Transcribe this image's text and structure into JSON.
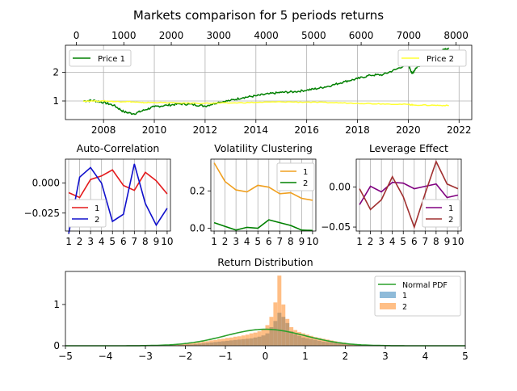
{
  "figure": {
    "title": "Markets comparison for 5 periods returns"
  },
  "chart_data": [
    {
      "id": "prices",
      "type": "line",
      "title": "",
      "x_bottom": {
        "ticks": [
          "2008",
          "2010",
          "2012",
          "2014",
          "2016",
          "2018",
          "2020",
          "2022"
        ],
        "range": [
          2006.5,
          2022.5
        ]
      },
      "x_top": {
        "ticks": [
          "0",
          "1000",
          "2000",
          "3000",
          "4000",
          "5000",
          "6000",
          "7000",
          "8000"
        ],
        "range": [
          -230,
          8330
        ]
      },
      "ylim": [
        0.35,
        2.95
      ],
      "yticks": [
        "1",
        "2"
      ],
      "grid": true,
      "legend": [
        {
          "label": "Price 1",
          "color": "#008000",
          "placement": "upper-left"
        },
        {
          "label": "Price 2",
          "color": "#ffff33",
          "placement": "upper-right"
        }
      ],
      "series": [
        {
          "name": "Price 1",
          "color": "#008000",
          "x": [
            2007.2,
            2007.6,
            2008.0,
            2008.4,
            2008.8,
            2009.2,
            2009.6,
            2010.0,
            2010.5,
            2011.0,
            2011.5,
            2012.0,
            2012.5,
            2013.0,
            2013.5,
            2014.0,
            2014.5,
            2015.0,
            2015.5,
            2016.0,
            2016.5,
            2017.0,
            2017.5,
            2018.0,
            2018.5,
            2019.0,
            2019.5,
            2020.0,
            2020.15,
            2020.3,
            2020.6,
            2021.0,
            2021.4,
            2021.6
          ],
          "values": [
            1.0,
            1.02,
            0.95,
            0.85,
            0.62,
            0.55,
            0.68,
            0.8,
            0.85,
            0.9,
            0.88,
            0.82,
            0.95,
            1.02,
            1.12,
            1.18,
            1.25,
            1.3,
            1.32,
            1.38,
            1.45,
            1.55,
            1.68,
            1.78,
            1.9,
            1.92,
            2.1,
            2.3,
            1.95,
            2.15,
            2.35,
            2.55,
            2.8,
            2.85
          ]
        },
        {
          "name": "Price 2",
          "color": "#ffff33",
          "x": [
            2007.2,
            2008.0,
            2008.5,
            2009.0,
            2009.5,
            2010.0,
            2011.0,
            2012.0,
            2013.0,
            2014.0,
            2015.0,
            2016.0,
            2017.0,
            2018.0,
            2019.0,
            2020.0,
            2020.2,
            2021.0,
            2021.6
          ],
          "values": [
            1.0,
            1.0,
            0.98,
            0.98,
            0.94,
            0.95,
            0.93,
            0.92,
            0.93,
            0.95,
            0.97,
            0.96,
            0.94,
            0.92,
            0.9,
            0.88,
            0.86,
            0.85,
            0.84
          ]
        }
      ]
    },
    {
      "id": "autocorr",
      "type": "line",
      "title": "Auto-Correlation",
      "categories": [
        "1",
        "2",
        "3",
        "4",
        "5",
        "6",
        "7",
        "8",
        "9",
        "10"
      ],
      "xlim": [
        0.7,
        10.3
      ],
      "ylim": [
        -0.04,
        0.02
      ],
      "yticks": [
        0.0,
        -0.025
      ],
      "ytick_labels": [
        "0.000",
        "−0.025"
      ],
      "grid": true,
      "legend_placement": "lower-left",
      "series": [
        {
          "name": "1",
          "color": "#e41a1c",
          "values": [
            -0.008,
            -0.012,
            0.003,
            0.006,
            0.011,
            -0.002,
            -0.006,
            0.009,
            0.002,
            -0.009
          ]
        },
        {
          "name": "2",
          "color": "#1010cc",
          "values": [
            -0.042,
            0.005,
            0.013,
            0.0,
            -0.032,
            -0.026,
            0.016,
            -0.017,
            -0.035,
            -0.021
          ]
        }
      ]
    },
    {
      "id": "volclust",
      "type": "line",
      "title": "Volatility Clustering",
      "categories": [
        "1",
        "2",
        "3",
        "4",
        "5",
        "6",
        "7",
        "8",
        "9",
        "10"
      ],
      "xlim": [
        0.7,
        10.3
      ],
      "ylim": [
        -0.015,
        0.37
      ],
      "yticks": [
        0.0,
        0.2
      ],
      "ytick_labels": [
        "0.0",
        "0.2"
      ],
      "grid": true,
      "legend_placement": "upper-right",
      "series": [
        {
          "name": "1",
          "color": "#f0a020",
          "values": [
            0.35,
            0.25,
            0.205,
            0.195,
            0.23,
            0.22,
            0.185,
            0.19,
            0.16,
            0.15
          ]
        },
        {
          "name": "2",
          "color": "#008000",
          "values": [
            0.03,
            0.01,
            -0.01,
            0.005,
            0.0,
            0.045,
            0.03,
            0.015,
            -0.01,
            -0.012
          ]
        }
      ]
    },
    {
      "id": "leverage",
      "type": "line",
      "title": "Leverage Effect",
      "categories": [
        "1",
        "2",
        "3",
        "4",
        "5",
        "6",
        "7",
        "8",
        "9",
        "10"
      ],
      "xlim": [
        0.7,
        10.3
      ],
      "ylim": [
        -0.055,
        0.035
      ],
      "yticks": [
        0.0,
        -0.05
      ],
      "ytick_labels": [
        "0.00",
        "−0.05"
      ],
      "grid": true,
      "legend_placement": "lower-right",
      "series": [
        {
          "name": "1",
          "color": "#800080",
          "values": [
            -0.022,
            0.001,
            -0.006,
            0.006,
            0.005,
            -0.002,
            0.001,
            0.004,
            -0.013,
            -0.01
          ]
        },
        {
          "name": "2",
          "color": "#a03030",
          "values": [
            -0.002,
            -0.028,
            -0.016,
            0.013,
            -0.012,
            -0.05,
            -0.008,
            0.032,
            0.004,
            -0.002
          ]
        }
      ]
    },
    {
      "id": "returns",
      "type": "bar",
      "title": "Return Distribution",
      "xlim": [
        -5,
        5
      ],
      "ylim": [
        0,
        1.8
      ],
      "xticks": [
        "−5",
        "−4",
        "−3",
        "−2",
        "−1",
        "0",
        "1",
        "2",
        "3",
        "4",
        "5"
      ],
      "yticks": [
        "0",
        "1"
      ],
      "legend_placement": "upper-right",
      "series": [
        {
          "name": "Normal PDF",
          "color": "#2ca02c",
          "kind": "pdf",
          "mu": 0,
          "sigma": 1
        },
        {
          "name": "1",
          "color": "#1f77b4",
          "kind": "histogram",
          "bin_width": 0.1,
          "bin_start": -2.4,
          "values": [
            0.01,
            0.01,
            0.02,
            0.02,
            0.03,
            0.03,
            0.04,
            0.05,
            0.06,
            0.07,
            0.08,
            0.09,
            0.1,
            0.11,
            0.12,
            0.13,
            0.14,
            0.15,
            0.16,
            0.17,
            0.18,
            0.2,
            0.22,
            0.25,
            0.3,
            0.45,
            0.6,
            0.8,
            0.7,
            0.55,
            0.35,
            0.28,
            0.24,
            0.2,
            0.18,
            0.16,
            0.14,
            0.12,
            0.1,
            0.09,
            0.08,
            0.07,
            0.06,
            0.05,
            0.04,
            0.03,
            0.02,
            0.02,
            0.01
          ]
        },
        {
          "name": "2",
          "color": "#ff7f0e",
          "kind": "histogram",
          "bin_width": 0.1,
          "bin_start": -2.4,
          "values": [
            0.02,
            0.02,
            0.03,
            0.04,
            0.05,
            0.06,
            0.07,
            0.08,
            0.1,
            0.11,
            0.13,
            0.14,
            0.16,
            0.17,
            0.19,
            0.2,
            0.22,
            0.23,
            0.25,
            0.27,
            0.3,
            0.32,
            0.35,
            0.4,
            0.5,
            0.7,
            1.05,
            1.7,
            1.0,
            0.65,
            0.45,
            0.38,
            0.33,
            0.3,
            0.27,
            0.24,
            0.21,
            0.19,
            0.17,
            0.15,
            0.13,
            0.11,
            0.09,
            0.08,
            0.06,
            0.05,
            0.04,
            0.03,
            0.02
          ]
        }
      ]
    }
  ]
}
